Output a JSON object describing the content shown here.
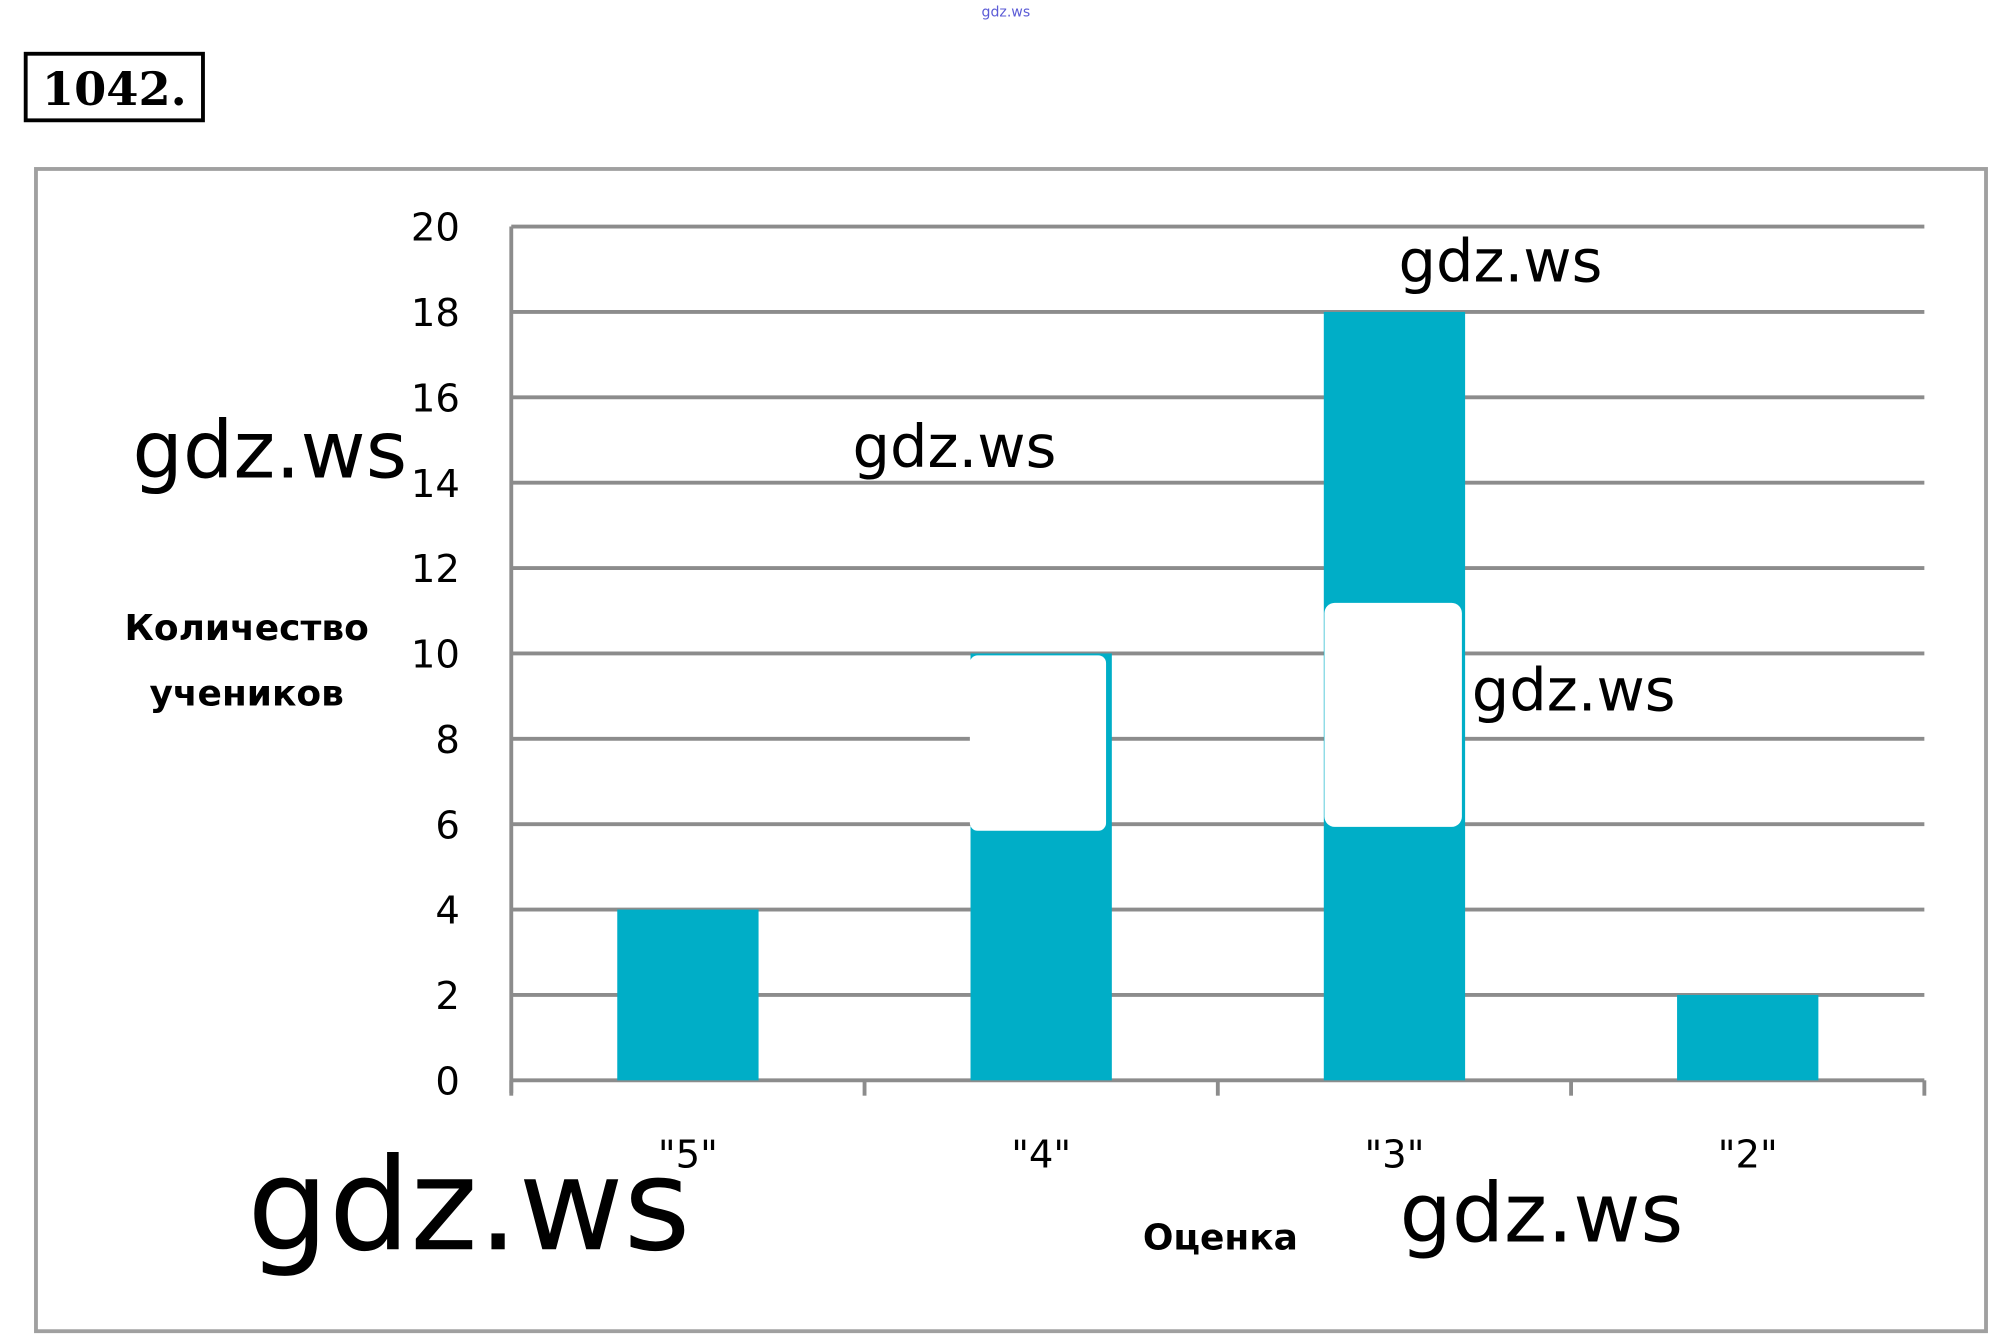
{
  "problem_number": "1042.",
  "site_label": "gdz.ws",
  "watermarks": [
    "gdz.ws",
    "gdz.ws",
    "gdz.ws",
    "gdz.ws",
    "gdz.ws",
    "gdz.ws"
  ],
  "colors": {
    "bar": "#00AEC7",
    "grid": "#8C8C8C",
    "frame": "#A0A0A0"
  },
  "chart_data": {
    "type": "bar",
    "categories": [
      "\"5\"",
      "\"4\"",
      "\"3\"",
      "\"2\""
    ],
    "values": [
      4,
      10,
      18,
      2
    ],
    "title": "",
    "xlabel": "Оценка",
    "ylabel_lines": [
      "Количество",
      "учеников"
    ],
    "ylim": [
      0,
      20
    ],
    "yticks": [
      "0",
      "2",
      "4",
      "6",
      "8",
      "10",
      "12",
      "14",
      "16",
      "18",
      "20"
    ],
    "grid": true,
    "legend": "none"
  }
}
